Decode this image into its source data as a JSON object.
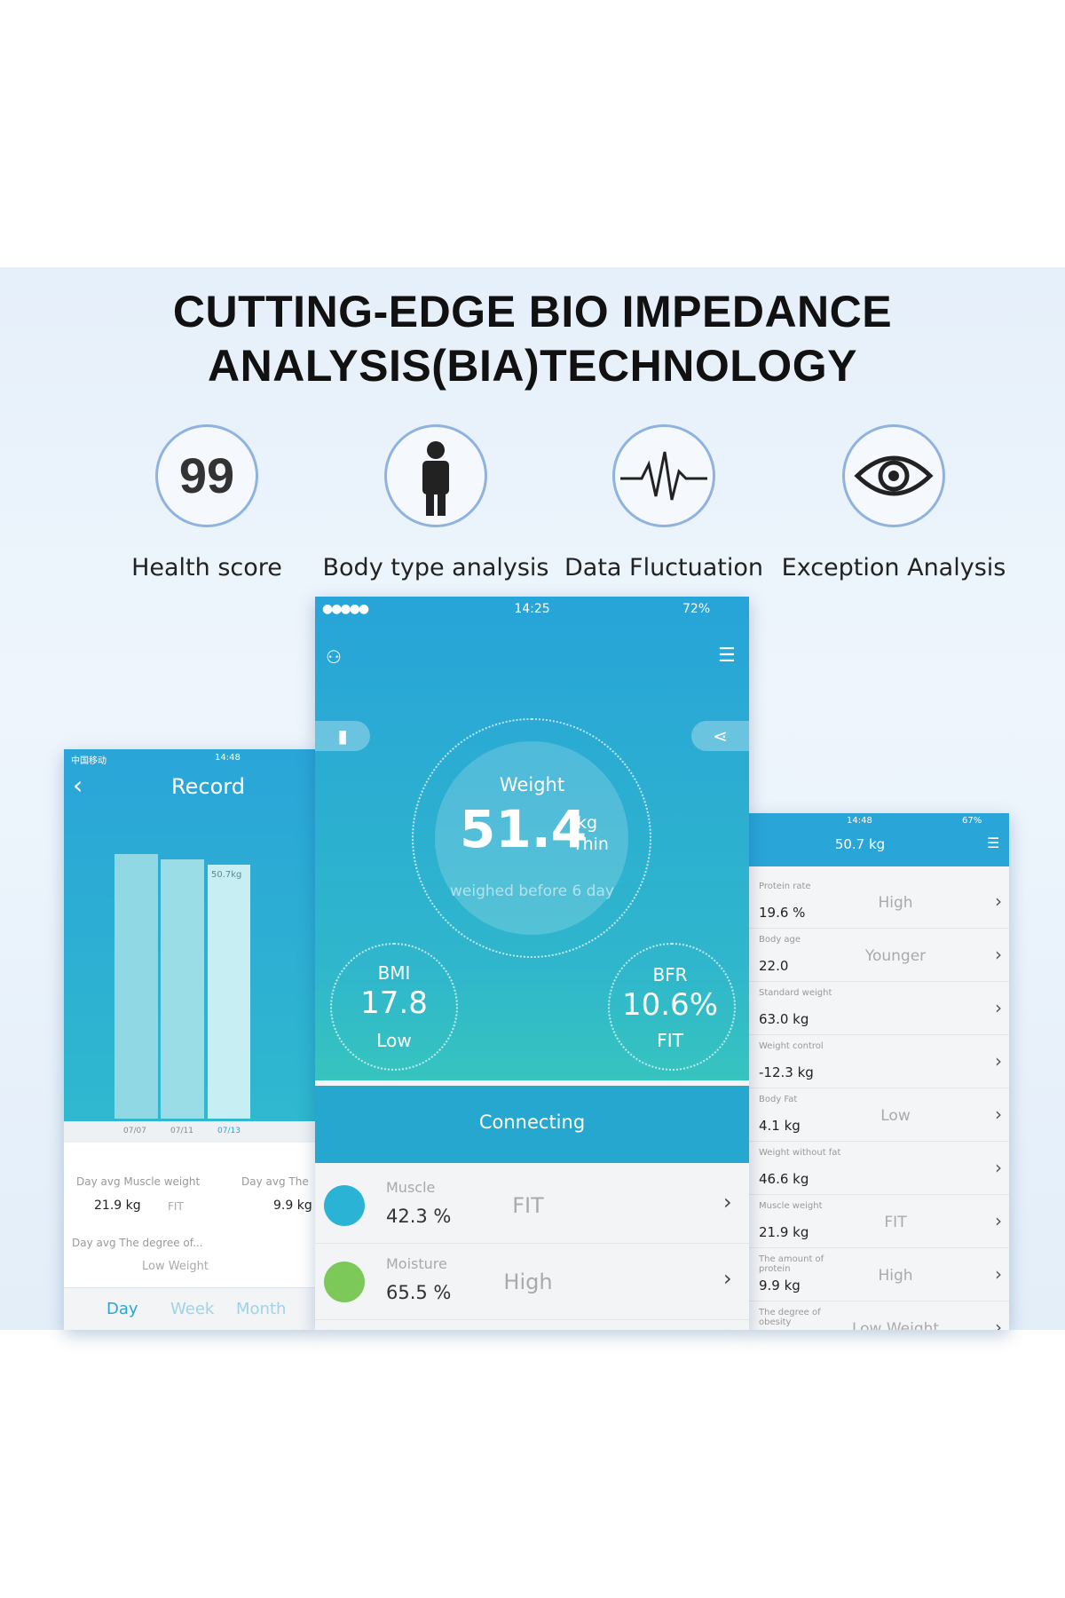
{
  "header": {
    "title_lines": [
      "CUTTING-EDGE BIO IMPEDANCE",
      "ANALYSIS(BIA)TECHNOLOGY"
    ]
  },
  "features": [
    {
      "icon_text": "99",
      "label": "Health score"
    },
    {
      "label": "Body type analysis"
    },
    {
      "label": "Data Fluctuation"
    },
    {
      "label": "Exception Analysis"
    }
  ],
  "record_screen": {
    "status_carrier": "中国移动",
    "status_time": "14:48",
    "title": "Record",
    "bar_label": "50.7kg",
    "dates": [
      "07/07",
      "07/11",
      "07/13"
    ],
    "stats": [
      {
        "label": "Day avg Muscle weight",
        "value": "21.9 kg",
        "status": "FIT"
      },
      {
        "label": "Day avg The",
        "value": "9.9 kg"
      }
    ],
    "obesity": {
      "label": "Day avg The degree of...",
      "value": "Low Weight"
    },
    "tabs": [
      "Day",
      "Week",
      "Month"
    ]
  },
  "main_screen": {
    "status_time": "14:25",
    "battery": "72%",
    "weight": {
      "label": "Weight",
      "value": "51.4",
      "unit": "kg",
      "status": "Thin",
      "note": "weighed before 6 day"
    },
    "bmi": {
      "label": "BMI",
      "value": "17.8",
      "status": "Low"
    },
    "bfr": {
      "label": "BFR",
      "value": "10.6%",
      "status": "FIT"
    },
    "connect_status": "Connecting",
    "metrics": [
      {
        "label": "Muscle",
        "value": "42.3 %",
        "status": "FIT",
        "color": "#2bb3d6"
      },
      {
        "label": "Moisture",
        "value": "65.5 %",
        "status": "High",
        "color": "#7cc95a"
      }
    ]
  },
  "detail_screen": {
    "status_time": "14:48",
    "battery": "67%",
    "title": "50.7 kg",
    "rows": [
      {
        "label": "Protein rate",
        "value": "19.6 %",
        "status": "High"
      },
      {
        "label": "Body age",
        "value": "22.0",
        "status": "Younger"
      },
      {
        "label": "Standard weight",
        "value": "63.0 kg"
      },
      {
        "label": "Weight control",
        "value": "-12.3 kg"
      },
      {
        "label": "Body Fat",
        "value": "4.1 kg",
        "status": "Low"
      },
      {
        "label": "Weight without fat",
        "value": "46.6 kg"
      },
      {
        "label": "Muscle weight",
        "value": "21.9 kg",
        "status": "FIT"
      },
      {
        "label": "The amount of protein",
        "value": "9.9 kg",
        "status": "High"
      },
      {
        "label": "The degree of obesity",
        "status": "Low Weight"
      }
    ]
  }
}
